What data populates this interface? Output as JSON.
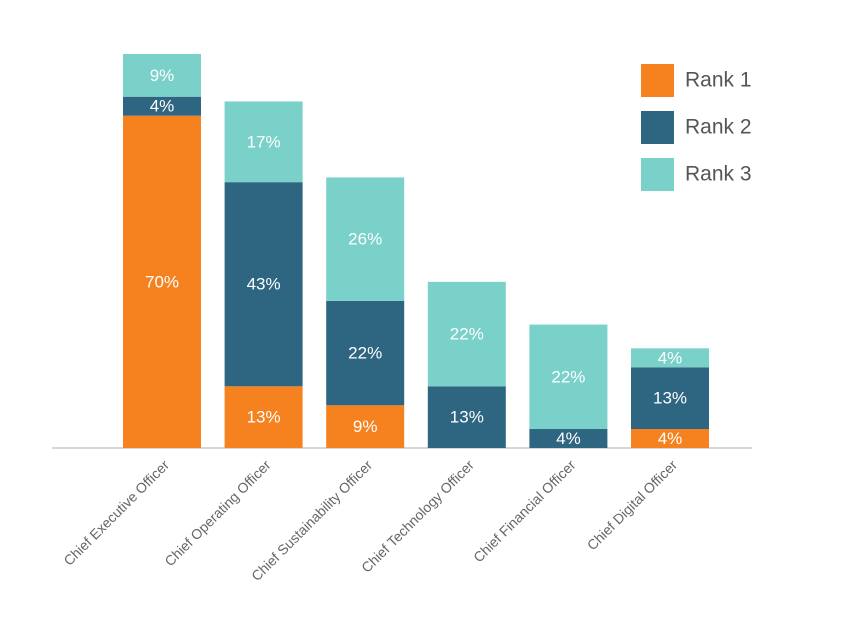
{
  "chart_data": {
    "type": "bar",
    "stacked": true,
    "categories": [
      "Chief Executive Officer",
      "Chief Operating Officer",
      "Chief Sustainability Officer",
      "Chief Technology Officer",
      "Chief Financial Officer",
      "Chief Digital Officer"
    ],
    "series": [
      {
        "name": "Rank 1",
        "color": "#f5821f",
        "values": [
          70,
          13,
          9,
          0,
          0,
          4
        ],
        "labels": [
          "70%",
          "13%",
          "9%",
          "",
          "",
          "4%"
        ]
      },
      {
        "name": "Rank 2",
        "color": "#2e6581",
        "values": [
          4,
          43,
          22,
          13,
          4,
          13
        ],
        "labels": [
          "4%",
          "43%",
          "22%",
          "13%",
          "4%",
          "13%"
        ]
      },
      {
        "name": "Rank 3",
        "color": "#79d1ca",
        "values": [
          9,
          17,
          26,
          22,
          22,
          4
        ],
        "labels": [
          "9%",
          "17%",
          "26%",
          "22%",
          "22%",
          "4%"
        ]
      }
    ],
    "ylim": [
      0,
      83
    ],
    "grid": false,
    "legend_position": "top-right",
    "xlabel": "",
    "ylabel": "",
    "title": ""
  }
}
